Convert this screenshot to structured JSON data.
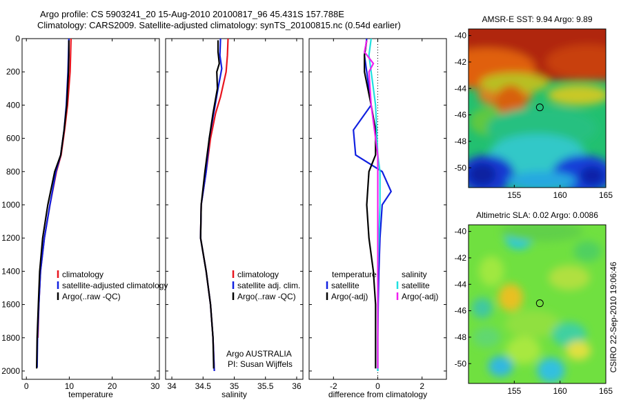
{
  "title": {
    "line1": "Argo profile: CS 5903241_20 15-Aug-2010 20100817_96 45.431S 157.788E",
    "line2": "Climatology: CARS2009. Satellite-adjusted climatology: synTS_20100815.nc (0.54d earlier)"
  },
  "credit": {
    "agency": "Argo AUSTRALIA",
    "pi": "PI: Susan Wijffels",
    "stamp": "CSIRO 22-Sep-2010 19:06:46"
  },
  "colors": {
    "red": "#e8141e",
    "blue": "#1020e0",
    "black": "#000000",
    "cyan": "#20e0e0",
    "magenta": "#f020f0"
  },
  "chart_data": [
    {
      "type": "line",
      "xlabel": "temperature",
      "ylabel": "",
      "xlim": [
        -1,
        31
      ],
      "ylim": [
        2050,
        0
      ],
      "xticks": [
        0,
        10,
        20,
        30
      ],
      "yticks": [
        0,
        200,
        400,
        600,
        800,
        1000,
        1200,
        1400,
        1600,
        1800,
        2000
      ],
      "legend": [
        "climatology",
        "satellite-adjusted climatology",
        "Argo(..raw -QC)"
      ],
      "series": [
        {
          "name": "climatology",
          "color": "red",
          "points": [
            [
              10.4,
              0
            ],
            [
              10.3,
              100
            ],
            [
              10.2,
              200
            ],
            [
              9.6,
              400
            ],
            [
              8.9,
              550
            ],
            [
              8.1,
              700
            ],
            [
              7.0,
              800
            ],
            [
              5.5,
              1000
            ],
            [
              4.2,
              1200
            ],
            [
              3.3,
              1400
            ],
            [
              2.9,
              1600
            ],
            [
              2.7,
              1800
            ]
          ]
        },
        {
          "name": "satellite-adjusted climatology",
          "color": "blue",
          "points": [
            [
              9.9,
              0
            ],
            [
              9.8,
              100
            ],
            [
              9.7,
              200
            ],
            [
              9.3,
              400
            ],
            [
              8.8,
              550
            ],
            [
              8.0,
              700
            ],
            [
              6.9,
              800
            ],
            [
              5.5,
              1000
            ],
            [
              4.2,
              1200
            ],
            [
              3.3,
              1400
            ],
            [
              2.9,
              1600
            ],
            [
              2.6,
              1800
            ],
            [
              2.5,
              1980
            ]
          ]
        },
        {
          "name": "Argo(..raw -QC)",
          "color": "black",
          "points": [
            [
              9.9,
              10
            ],
            [
              9.9,
              100
            ],
            [
              9.8,
              200
            ],
            [
              9.4,
              400
            ],
            [
              8.8,
              550
            ],
            [
              8.0,
              700
            ],
            [
              6.6,
              800
            ],
            [
              5.0,
              1000
            ],
            [
              3.8,
              1200
            ],
            [
              3.1,
              1400
            ],
            [
              2.8,
              1600
            ],
            [
              2.5,
              1800
            ],
            [
              2.4,
              1985
            ]
          ]
        }
      ]
    },
    {
      "type": "line",
      "xlabel": "salinity",
      "ylabel": "",
      "xlim": [
        33.9,
        36.1
      ],
      "ylim": [
        2050,
        0
      ],
      "xticks": [
        34,
        34.5,
        35,
        35.5,
        36
      ],
      "yticks": [
        0,
        200,
        400,
        600,
        800,
        1000,
        1200,
        1400,
        1600,
        1800,
        2000
      ],
      "legend": [
        "climatology",
        "satellite adj. clim.",
        "Argo(..raw -QC)"
      ],
      "series": [
        {
          "name": "climatology",
          "color": "red",
          "points": [
            [
              34.9,
              0
            ],
            [
              34.89,
              100
            ],
            [
              34.87,
              200
            ],
            [
              34.78,
              350
            ],
            [
              34.7,
              450
            ],
            [
              34.62,
              600
            ],
            [
              34.55,
              800
            ],
            [
              34.47,
              1000
            ],
            [
              34.46,
              1200
            ],
            [
              34.55,
              1400
            ],
            [
              34.62,
              1600
            ],
            [
              34.66,
              1800
            ],
            [
              34.68,
              2000
            ]
          ]
        },
        {
          "name": "satellite adj. clim.",
          "color": "blue",
          "points": [
            [
              34.78,
              0
            ],
            [
              34.77,
              100
            ],
            [
              34.8,
              180
            ],
            [
              34.74,
              300
            ],
            [
              34.67,
              450
            ],
            [
              34.6,
              600
            ],
            [
              34.55,
              800
            ],
            [
              34.47,
              1000
            ],
            [
              34.46,
              1200
            ],
            [
              34.55,
              1400
            ],
            [
              34.62,
              1600
            ],
            [
              34.66,
              1800
            ],
            [
              34.68,
              2000
            ]
          ]
        },
        {
          "name": "Argo(..raw -QC)",
          "color": "black",
          "points": [
            [
              34.74,
              10
            ],
            [
              34.74,
              80
            ],
            [
              34.76,
              150
            ],
            [
              34.72,
              200
            ],
            [
              34.73,
              300
            ],
            [
              34.66,
              450
            ],
            [
              34.6,
              600
            ],
            [
              34.53,
              800
            ],
            [
              34.47,
              1000
            ],
            [
              34.46,
              1200
            ],
            [
              34.55,
              1400
            ],
            [
              34.62,
              1600
            ],
            [
              34.66,
              1800
            ],
            [
              34.67,
              1985
            ]
          ]
        }
      ]
    },
    {
      "type": "line",
      "xlabel": "difference from climatology",
      "ylabel": "",
      "xlim": [
        -3.1,
        3.1
      ],
      "ylim": [
        2050,
        0
      ],
      "xticks": [
        -2,
        0,
        2
      ],
      "yticks": [
        0,
        200,
        400,
        600,
        800,
        1000,
        1200,
        1400,
        1600,
        1800,
        2000
      ],
      "legend_left_title": "temperature",
      "legend_left": [
        "satellite",
        "Argo(-adj)"
      ],
      "legend_right_title": "salinity",
      "legend_right": [
        "satellite",
        "Argo(-adj)"
      ],
      "series": [
        {
          "name": "temperature satellite",
          "color": "blue",
          "points": [
            [
              -0.5,
              0
            ],
            [
              -0.6,
              100
            ],
            [
              -0.5,
              200
            ],
            [
              -0.3,
              400
            ],
            [
              -1.1,
              550
            ],
            [
              -1.0,
              700
            ],
            [
              0.2,
              800
            ],
            [
              0.6,
              920
            ],
            [
              0.2,
              1000
            ],
            [
              0.1,
              1200
            ],
            [
              0.05,
              1400
            ],
            [
              0.02,
              1600
            ],
            [
              0.0,
              1800
            ],
            [
              0.0,
              2000
            ]
          ]
        },
        {
          "name": "temperature Argo(-adj)",
          "color": "black",
          "points": [
            [
              -0.5,
              10
            ],
            [
              -0.6,
              100
            ],
            [
              -0.6,
              200
            ],
            [
              -0.3,
              400
            ],
            [
              -0.1,
              550
            ],
            [
              -0.1,
              700
            ],
            [
              -0.4,
              800
            ],
            [
              -0.5,
              1000
            ],
            [
              -0.4,
              1200
            ],
            [
              -0.2,
              1400
            ],
            [
              -0.1,
              1600
            ],
            [
              -0.1,
              1800
            ],
            [
              -0.1,
              1985
            ]
          ]
        },
        {
          "name": "salinity satellite",
          "color": "cyan",
          "points": [
            [
              -0.3,
              0
            ],
            [
              -0.4,
              100
            ],
            [
              -0.3,
              200
            ],
            [
              -0.1,
              400
            ],
            [
              0.0,
              700
            ],
            [
              0.1,
              800
            ],
            [
              0.1,
              1000
            ],
            [
              0.0,
              1400
            ],
            [
              0.0,
              2000
            ]
          ]
        },
        {
          "name": "salinity Argo(-adj)",
          "color": "magenta",
          "points": [
            [
              -0.5,
              10
            ],
            [
              -0.6,
              80
            ],
            [
              -0.2,
              150
            ],
            [
              -0.4,
              200
            ],
            [
              -0.3,
              400
            ],
            [
              -0.1,
              600
            ],
            [
              0.0,
              700
            ],
            [
              0.0,
              1000
            ],
            [
              0.0,
              1500
            ],
            [
              0.0,
              1985
            ]
          ]
        }
      ]
    },
    {
      "type": "heatmap",
      "title": "AMSR-E SST: 9.94 Argo: 9.89",
      "xlim": [
        150,
        165
      ],
      "ylim": [
        -51.5,
        -39.5
      ],
      "xticks": [
        155,
        160,
        165
      ],
      "yticks": [
        -40,
        -42,
        -44,
        -46,
        -48,
        -50
      ],
      "marker": [
        157.788,
        -45.431
      ]
    },
    {
      "type": "heatmap",
      "title": "Altimetric SLA: 0.02 Argo: 0.0086",
      "xlim": [
        150,
        165
      ],
      "ylim": [
        -51.5,
        -39.5
      ],
      "xticks": [
        155,
        160,
        165
      ],
      "yticks": [
        -40,
        -42,
        -44,
        -46,
        -48,
        -50
      ],
      "marker": [
        157.788,
        -45.431
      ]
    }
  ]
}
